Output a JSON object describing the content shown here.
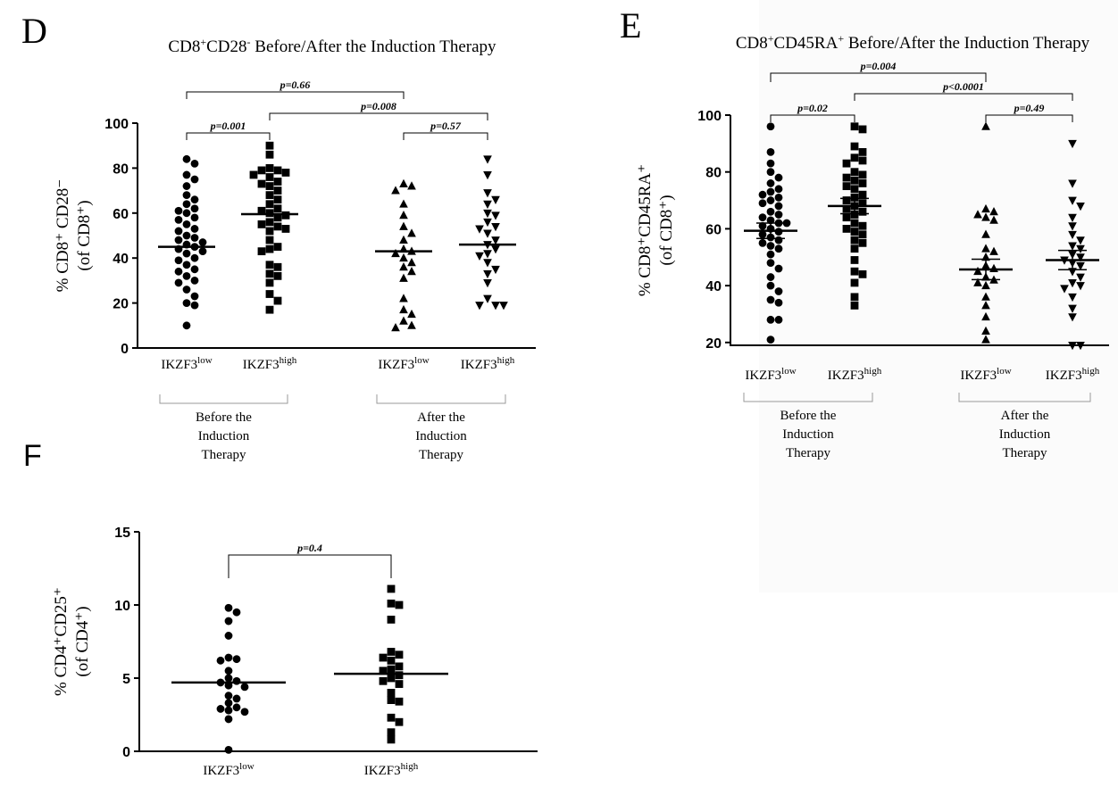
{
  "panels": [
    {
      "id": "d",
      "letter": "D",
      "title_html": "CD8<tspan baseline-shift=\"super\" font-size=\"12\">+</tspan>CD28<tspan baseline-shift=\"super\" font-size=\"12\">-</tspan> Before/After the Induction Therapy",
      "ylabel_line1": "% CD8⁺ CD28⁻",
      "ylabel_line2": "(of CD8⁺)",
      "group_labels": [
        [
          "Before the",
          "Induction",
          "Therapy"
        ],
        [
          "After the",
          "Induction",
          "Therapy"
        ]
      ],
      "p_values": [
        "p=0.001",
        "p=0.57",
        "p=0.66",
        "p=0.008"
      ]
    },
    {
      "id": "e",
      "letter": "E",
      "title_html": "CD8<tspan baseline-shift=\"super\" font-size=\"12\">+</tspan>CD45RA<tspan baseline-shift=\"super\" font-size=\"12\">+</tspan> Before/After the Induction Therapy",
      "ylabel_line1": "% CD8⁺CD45RA⁺",
      "ylabel_line2": "(of CD8⁺)",
      "group_labels": [
        [
          "Before the",
          "Induction",
          "Therapy"
        ],
        [
          "After the",
          "Induction",
          "Therapy"
        ]
      ],
      "p_values": [
        "p=0.02",
        "p=0.49",
        "p=0.004",
        "p<0.0001"
      ]
    },
    {
      "id": "f",
      "letter": "F",
      "ylabel_line1": "% CD4⁺CD25⁺",
      "ylabel_line2": "(of CD4⁺)",
      "p_values": [
        "p=0.4"
      ]
    }
  ],
  "chart_data": [
    {
      "panel": "D",
      "type": "scatter",
      "title": "CD8+CD28- Before/After the Induction Therapy",
      "ylabel": "% CD8+ CD28- (of CD8+)",
      "ylim": [
        0,
        100
      ],
      "yticks": [
        0,
        20,
        40,
        60,
        80,
        100
      ],
      "categories": [
        "IKZF3low",
        "IKZF3high",
        "IKZF3low",
        "IKZF3high"
      ],
      "groups": [
        "Before the Induction Therapy",
        "After the Induction Therapy"
      ],
      "series": [
        {
          "marker": "circle",
          "mean": 45,
          "values": [
            84,
            82,
            77,
            75,
            72,
            68,
            66,
            64,
            62,
            61,
            60,
            58,
            57,
            55,
            53,
            52,
            50,
            49,
            48,
            47,
            46,
            45,
            44,
            43,
            42,
            40,
            39,
            37,
            35,
            34,
            32,
            30,
            29,
            26,
            23,
            20,
            19,
            10
          ]
        },
        {
          "marker": "square",
          "mean": 59.5,
          "values": [
            90,
            86,
            80,
            79,
            79,
            78,
            77,
            76,
            74,
            73,
            72,
            70,
            68,
            66,
            64,
            62,
            61,
            60,
            59,
            58,
            56,
            55,
            54,
            53,
            52,
            48,
            45,
            44,
            43,
            37,
            36,
            33,
            32,
            29,
            24,
            21,
            17
          ]
        },
        {
          "marker": "triangle-up",
          "mean": 43,
          "values": [
            73,
            72,
            70,
            64,
            59,
            54,
            51,
            48,
            44,
            43,
            42,
            40,
            38,
            36,
            34,
            31,
            22,
            17,
            15,
            12,
            10,
            9
          ]
        },
        {
          "marker": "triangle-down",
          "mean": 46,
          "values": [
            84,
            77,
            69,
            66,
            64,
            60,
            59,
            56,
            54,
            53,
            51,
            48,
            46,
            44,
            42,
            41,
            38,
            35,
            33,
            29,
            22,
            19,
            19,
            19
          ]
        }
      ],
      "comparisons": [
        {
          "between": [
            "IKZF3low before",
            "IKZF3high before"
          ],
          "p": "p=0.001"
        },
        {
          "between": [
            "IKZF3low after",
            "IKZF3high after"
          ],
          "p": "p=0.57"
        },
        {
          "between": [
            "IKZF3low before",
            "IKZF3low after"
          ],
          "p": "p=0.66"
        },
        {
          "between": [
            "IKZF3high before",
            "IKZF3high after"
          ],
          "p": "p=0.008"
        }
      ]
    },
    {
      "panel": "E",
      "type": "scatter",
      "title": "CD8+CD45RA+ Before/After the Induction Therapy",
      "ylabel": "% CD8+CD45RA+ (of CD8+)",
      "ylim": [
        19,
        100
      ],
      "yticks": [
        20,
        40,
        60,
        80,
        100
      ],
      "categories": [
        "IKZF3low",
        "IKZF3high",
        "IKZF3low",
        "IKZF3high"
      ],
      "groups": [
        "Before the Induction Therapy",
        "After the Induction Therapy"
      ],
      "series": [
        {
          "marker": "circle",
          "mean": 59.3,
          "sem": 2.7,
          "values": [
            96,
            87,
            83,
            80,
            78,
            76,
            74,
            73,
            72,
            71,
            70,
            69,
            68,
            66,
            65,
            64,
            63,
            62,
            62,
            61,
            60,
            59,
            58,
            57,
            56,
            55,
            54,
            53,
            51,
            48,
            46,
            43,
            40,
            38,
            35,
            34,
            28,
            28,
            21
          ]
        },
        {
          "marker": "square",
          "mean": 68,
          "sem": 2.7,
          "values": [
            96,
            95,
            89,
            87,
            85,
            84,
            83,
            80,
            79,
            78,
            77,
            76,
            75,
            74,
            72,
            71,
            70,
            69,
            68,
            67,
            66,
            65,
            64,
            62,
            61,
            60,
            59,
            58,
            56,
            55,
            53,
            49,
            45,
            44,
            41,
            36,
            33
          ]
        },
        {
          "marker": "triangle-up",
          "mean": 45.7,
          "sem": 3.6,
          "values": [
            96,
            67,
            66,
            65,
            64,
            63,
            58,
            53,
            52,
            50,
            47,
            46,
            45,
            43,
            42,
            41,
            40,
            36,
            33,
            29,
            24,
            21
          ]
        },
        {
          "marker": "triangle-down",
          "mean": 49,
          "sem": 3.4,
          "values": [
            90,
            76,
            70,
            68,
            64,
            61,
            58,
            56,
            54,
            53,
            51,
            50,
            49,
            48,
            47,
            45,
            43,
            41,
            40,
            39,
            36,
            32,
            29,
            19,
            19
          ]
        }
      ],
      "comparisons": [
        {
          "between": [
            "IKZF3low before",
            "IKZF3high before"
          ],
          "p": "p=0.02"
        },
        {
          "between": [
            "IKZF3low after",
            "IKZF3high after"
          ],
          "p": "p=0.49"
        },
        {
          "between": [
            "IKZF3low before",
            "IKZF3low after"
          ],
          "p": "p=0.004"
        },
        {
          "between": [
            "IKZF3high before",
            "IKZF3high after"
          ],
          "p": "p<0.0001"
        }
      ]
    },
    {
      "panel": "F",
      "type": "scatter",
      "ylabel": "% CD4+CD25+ (of CD4+)",
      "ylim": [
        0,
        15
      ],
      "yticks": [
        0,
        5,
        10,
        15
      ],
      "categories": [
        "IKZF3low",
        "IKZF3high"
      ],
      "series": [
        {
          "marker": "circle",
          "mean": 4.7,
          "values": [
            9.8,
            9.5,
            8.9,
            7.9,
            6.4,
            6.3,
            6.2,
            5.5,
            5.0,
            4.8,
            4.7,
            4.5,
            4.4,
            3.8,
            3.6,
            3.3,
            3.0,
            2.9,
            2.8,
            2.7,
            2.2,
            0.1
          ]
        },
        {
          "marker": "square",
          "mean": 5.3,
          "values": [
            11.1,
            10.1,
            10.0,
            9.0,
            6.8,
            6.6,
            6.4,
            6.2,
            5.8,
            5.6,
            5.5,
            5.2,
            5.0,
            4.8,
            4.6,
            4.0,
            3.5,
            3.4,
            2.3,
            2.0,
            1.3,
            0.8
          ]
        }
      ],
      "comparisons": [
        {
          "between": [
            "IKZF3low",
            "IKZF3high"
          ],
          "p": "p=0.4"
        }
      ]
    }
  ],
  "category_text": {
    "base": "IKZF3",
    "low": "low",
    "high": "high"
  }
}
